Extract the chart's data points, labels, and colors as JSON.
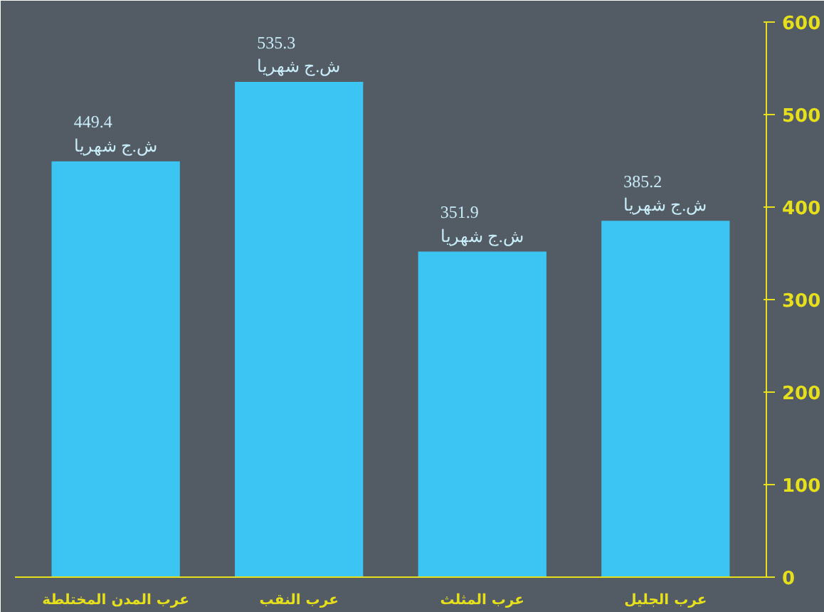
{
  "chart_data": {
    "type": "bar",
    "categories": [
      "عرب المدن المختلطة",
      "عرب النقب",
      "عرب المثلث",
      "عرب الجليل"
    ],
    "values": [
      449.4,
      535.3,
      351.9,
      385.2
    ],
    "color": "#3cc4f2",
    "value_labels": [
      "449.4\nش.ج شهريا",
      "535.3\nش.ج شهريا",
      "351.9\nش.ج شهريا",
      "385.2\nش.ج شهريا"
    ],
    "ylim": [
      0,
      600
    ],
    "yticks": [
      0,
      100,
      200,
      300,
      400,
      500,
      600
    ]
  }
}
